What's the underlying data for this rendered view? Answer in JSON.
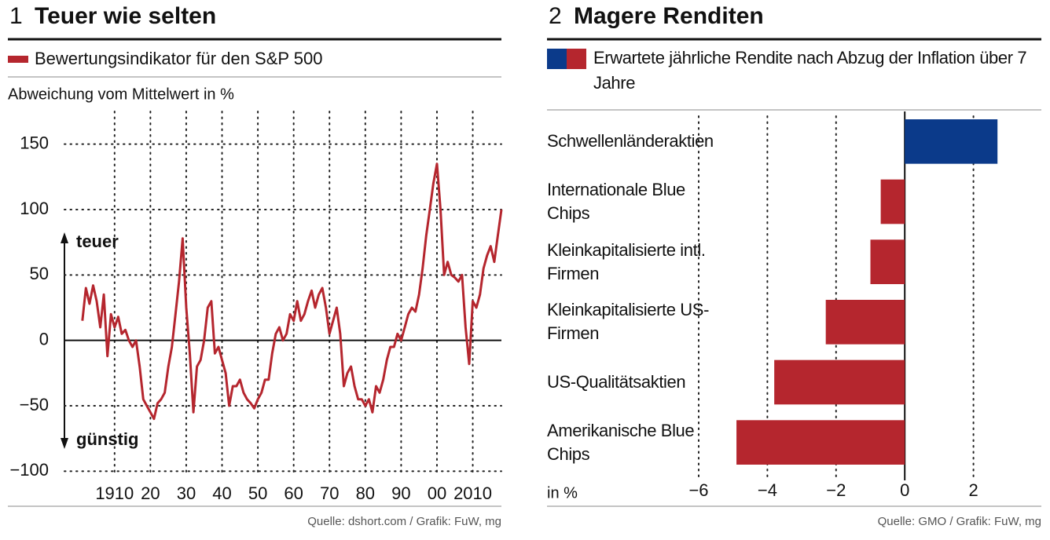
{
  "chart_data": [
    {
      "type": "line",
      "number": "1",
      "title": "Teuer wie selten",
      "y_label": "Abweichung vom Mittelwert in %",
      "annotations": [
        "teuer",
        "günstig"
      ],
      "source": "Quelle: dshort.com / Grafik: FuW, mg",
      "x": [
        1901,
        1902,
        1903,
        1904,
        1905,
        1906,
        1907,
        1908,
        1909,
        1910,
        1911,
        1912,
        1913,
        1914,
        1915,
        1916,
        1917,
        1918,
        1919,
        1920,
        1921,
        1922,
        1923,
        1924,
        1925,
        1926,
        1927,
        1928,
        1929,
        1930,
        1931,
        1932,
        1933,
        1934,
        1935,
        1936,
        1937,
        1938,
        1939,
        1940,
        1941,
        1942,
        1943,
        1944,
        1945,
        1946,
        1947,
        1948,
        1949,
        1950,
        1951,
        1952,
        1953,
        1954,
        1955,
        1956,
        1957,
        1958,
        1959,
        1960,
        1961,
        1962,
        1963,
        1964,
        1965,
        1966,
        1967,
        1968,
        1969,
        1970,
        1971,
        1972,
        1973,
        1974,
        1975,
        1976,
        1977,
        1978,
        1979,
        1980,
        1981,
        1982,
        1983,
        1984,
        1985,
        1986,
        1987,
        1988,
        1989,
        1990,
        1991,
        1992,
        1993,
        1994,
        1995,
        1996,
        1997,
        1998,
        1999,
        2000,
        2001,
        2002,
        2003,
        2004,
        2005,
        2006,
        2007,
        2008,
        2009,
        2010,
        2011,
        2012,
        2013,
        2014,
        2015,
        2016,
        2017,
        2018
      ],
      "series": [
        {
          "name": "Bewertungsindikator für den S&P 500",
          "color": "#b5262e",
          "values": [
            15,
            40,
            28,
            42,
            30,
            10,
            35,
            -12,
            20,
            10,
            18,
            5,
            8,
            0,
            -5,
            0,
            -20,
            -45,
            -50,
            -55,
            -60,
            -48,
            -45,
            -40,
            -20,
            -5,
            20,
            45,
            78,
            25,
            -10,
            -55,
            -20,
            -15,
            0,
            25,
            30,
            -10,
            -5,
            -15,
            -25,
            -50,
            -35,
            -35,
            -30,
            -40,
            -45,
            -48,
            -52,
            -45,
            -40,
            -30,
            -30,
            -10,
            5,
            10,
            0,
            5,
            20,
            15,
            30,
            15,
            20,
            30,
            38,
            25,
            35,
            40,
            25,
            5,
            15,
            25,
            5,
            -35,
            -25,
            -20,
            -35,
            -45,
            -45,
            -50,
            -45,
            -55,
            -35,
            -40,
            -30,
            -15,
            -5,
            -5,
            5,
            0,
            10,
            20,
            25,
            22,
            35,
            55,
            80,
            100,
            120,
            135,
            100,
            50,
            60,
            50,
            48,
            45,
            50,
            10,
            -18,
            30,
            25,
            35,
            55,
            65,
            72,
            60,
            80,
            100
          ]
        }
      ],
      "xlim": [
        1896,
        2018
      ],
      "xticks": [
        1910,
        {
          "value": 1920,
          "label": "20"
        },
        {
          "value": 1930,
          "label": "30"
        },
        {
          "value": 1940,
          "label": "40"
        },
        {
          "value": 1950,
          "label": "50"
        },
        {
          "value": 1960,
          "label": "60"
        },
        {
          "value": 1970,
          "label": "70"
        },
        {
          "value": 1980,
          "label": "80"
        },
        {
          "value": 1990,
          "label": "90"
        },
        {
          "value": 2000,
          "label": "00"
        },
        2010
      ],
      "ylim": [
        -110,
        175
      ],
      "yticks": [
        {
          "value": -100,
          "label": "−100"
        },
        {
          "value": -50,
          "label": "−50"
        },
        0,
        50,
        100,
        150
      ],
      "grid": true
    },
    {
      "type": "barh",
      "number": "2",
      "title": "Magere Renditen",
      "x_label": "in %",
      "source": "Quelle: GMO / Grafik: FuW, mg",
      "categories": [
        "Schwellenländeraktien",
        "Internationale Blue Chips",
        "Kleinkapitalisierte intl. Firmen",
        "Kleinkapitalisierte US-Firmen",
        "US-Qualitätsaktien",
        "Amerikanische Blue Chips"
      ],
      "series": [
        {
          "name": "Erwartete jährliche Rendite nach Abzug der Inflation über 7 Jahre",
          "values": [
            2.7,
            -0.7,
            -1.0,
            -2.3,
            -3.8,
            -4.9
          ],
          "colors": [
            "#0b3a8a",
            "#b5262e",
            "#b5262e",
            "#b5262e",
            "#b5262e",
            "#b5262e"
          ]
        }
      ],
      "xlim": [
        -6,
        4
      ],
      "xticks": [
        {
          "value": -6,
          "label": "−6"
        },
        {
          "value": -4,
          "label": "−4"
        },
        {
          "value": -2,
          "label": "−2"
        },
        0,
        2
      ],
      "grid": true
    }
  ]
}
